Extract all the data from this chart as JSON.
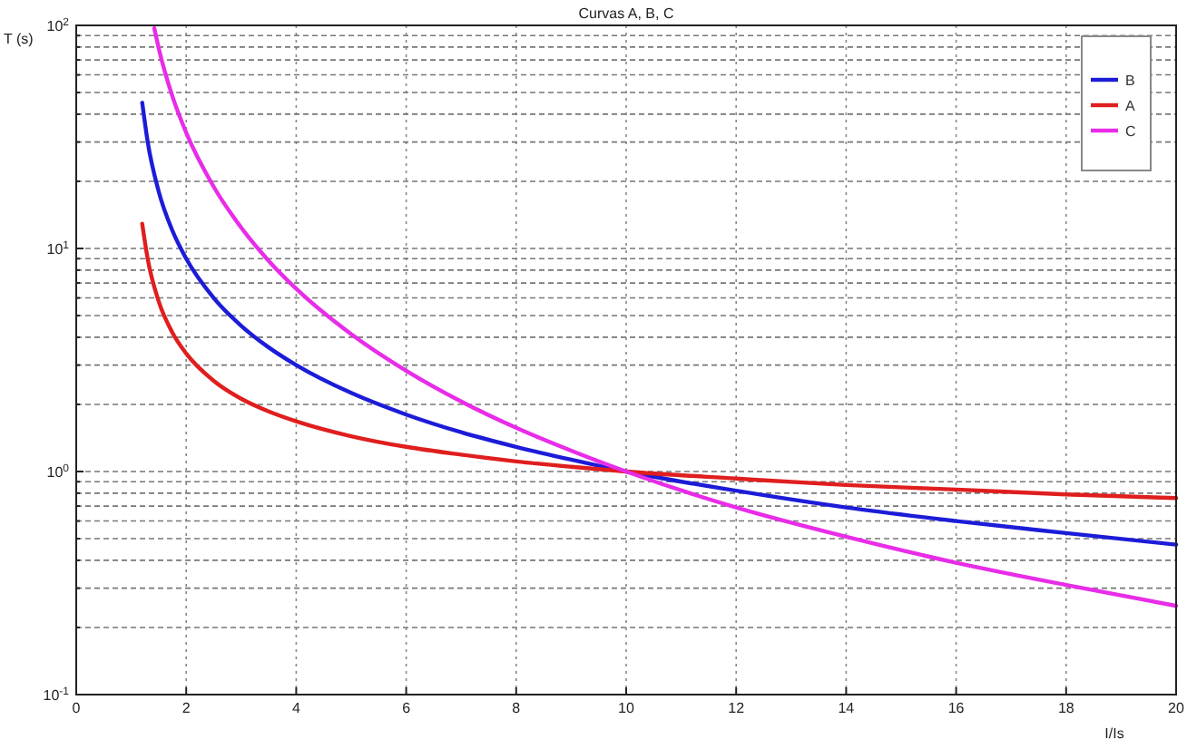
{
  "chart_data": {
    "type": "line",
    "title": "Curvas A, B, C",
    "xlabel": "I/Is",
    "ylabel": "T (s)",
    "log": "y",
    "grid": true,
    "legend": "top right",
    "line_style": "solid",
    "marker": "none",
    "xlim": [
      0,
      20
    ],
    "xticks": [
      0,
      2,
      4,
      6,
      8,
      10,
      12,
      14,
      16,
      18,
      20
    ],
    "ylim": [
      0.1,
      100
    ],
    "yticks": [
      {
        "value": 0.1,
        "label": "10$^{-1}$"
      },
      {
        "value": 0.2,
        "label": null
      },
      {
        "value": 0.3,
        "label": null
      },
      {
        "value": 0.4,
        "label": null
      },
      {
        "value": 0.5,
        "label": null
      },
      {
        "value": 0.6,
        "label": null
      },
      {
        "value": 0.7,
        "label": null
      },
      {
        "value": 0.8,
        "label": null
      },
      {
        "value": 0.9,
        "label": null
      },
      {
        "value": 1,
        "label": "10$^{0}$"
      },
      {
        "value": 2,
        "label": null
      },
      {
        "value": 3,
        "label": null
      },
      {
        "value": 4,
        "label": null
      },
      {
        "value": 5,
        "label": null
      },
      {
        "value": 6,
        "label": null
      },
      {
        "value": 7,
        "label": null
      },
      {
        "value": 8,
        "label": null
      },
      {
        "value": 9,
        "label": null
      },
      {
        "value": 10,
        "label": "10$^{1}$"
      },
      {
        "value": 20,
        "label": null
      },
      {
        "value": 30,
        "label": null
      },
      {
        "value": 40,
        "label": null
      },
      {
        "value": 50,
        "label": null
      },
      {
        "value": 60,
        "label": null
      },
      {
        "value": 70,
        "label": null
      },
      {
        "value": 80,
        "label": null
      },
      {
        "value": 90,
        "label": null
      },
      {
        "value": 100,
        "label": "10$^{2}$"
      }
    ],
    "series": [
      {
        "name": "B",
        "color": "#1c1cd8",
        "x": [
          1.2,
          1.3,
          1.5,
          1.75,
          2,
          2.5,
          3,
          3.5,
          4,
          5,
          6,
          7,
          8,
          9,
          10,
          12,
          14,
          16,
          18,
          20
        ],
        "values": [
          45,
          30,
          18,
          12,
          9,
          6,
          4.5,
          3.6,
          3,
          2.25,
          1.8,
          1.5,
          1.29,
          1.13,
          1,
          0.82,
          0.69,
          0.6,
          0.53,
          0.47
        ]
      },
      {
        "name": "A",
        "color": "#e01e1e",
        "x": [
          1.2,
          1.3,
          1.5,
          1.75,
          2,
          2.5,
          3,
          3.5,
          4,
          5,
          6,
          7,
          8,
          9,
          10,
          12,
          14,
          16,
          18,
          20
        ],
        "values": [
          12.9,
          8.96,
          5.79,
          4.19,
          3.38,
          2.55,
          2.12,
          1.86,
          1.68,
          1.44,
          1.29,
          1.19,
          1.11,
          1.05,
          1,
          0.93,
          0.87,
          0.83,
          0.79,
          0.76
        ]
      },
      {
        "name": "C",
        "color": "#e82ce8",
        "x": [
          1.42,
          1.5,
          1.75,
          2,
          2.5,
          3,
          3.5,
          4,
          5,
          6,
          7,
          8,
          9,
          10,
          12,
          14,
          16,
          18,
          20
        ],
        "values": [
          97,
          79,
          48,
          33,
          18.9,
          12.4,
          8.8,
          6.6,
          4.13,
          2.83,
          2.06,
          1.57,
          1.24,
          1,
          0.69,
          0.51,
          0.39,
          0.31,
          0.25
        ]
      }
    ]
  }
}
